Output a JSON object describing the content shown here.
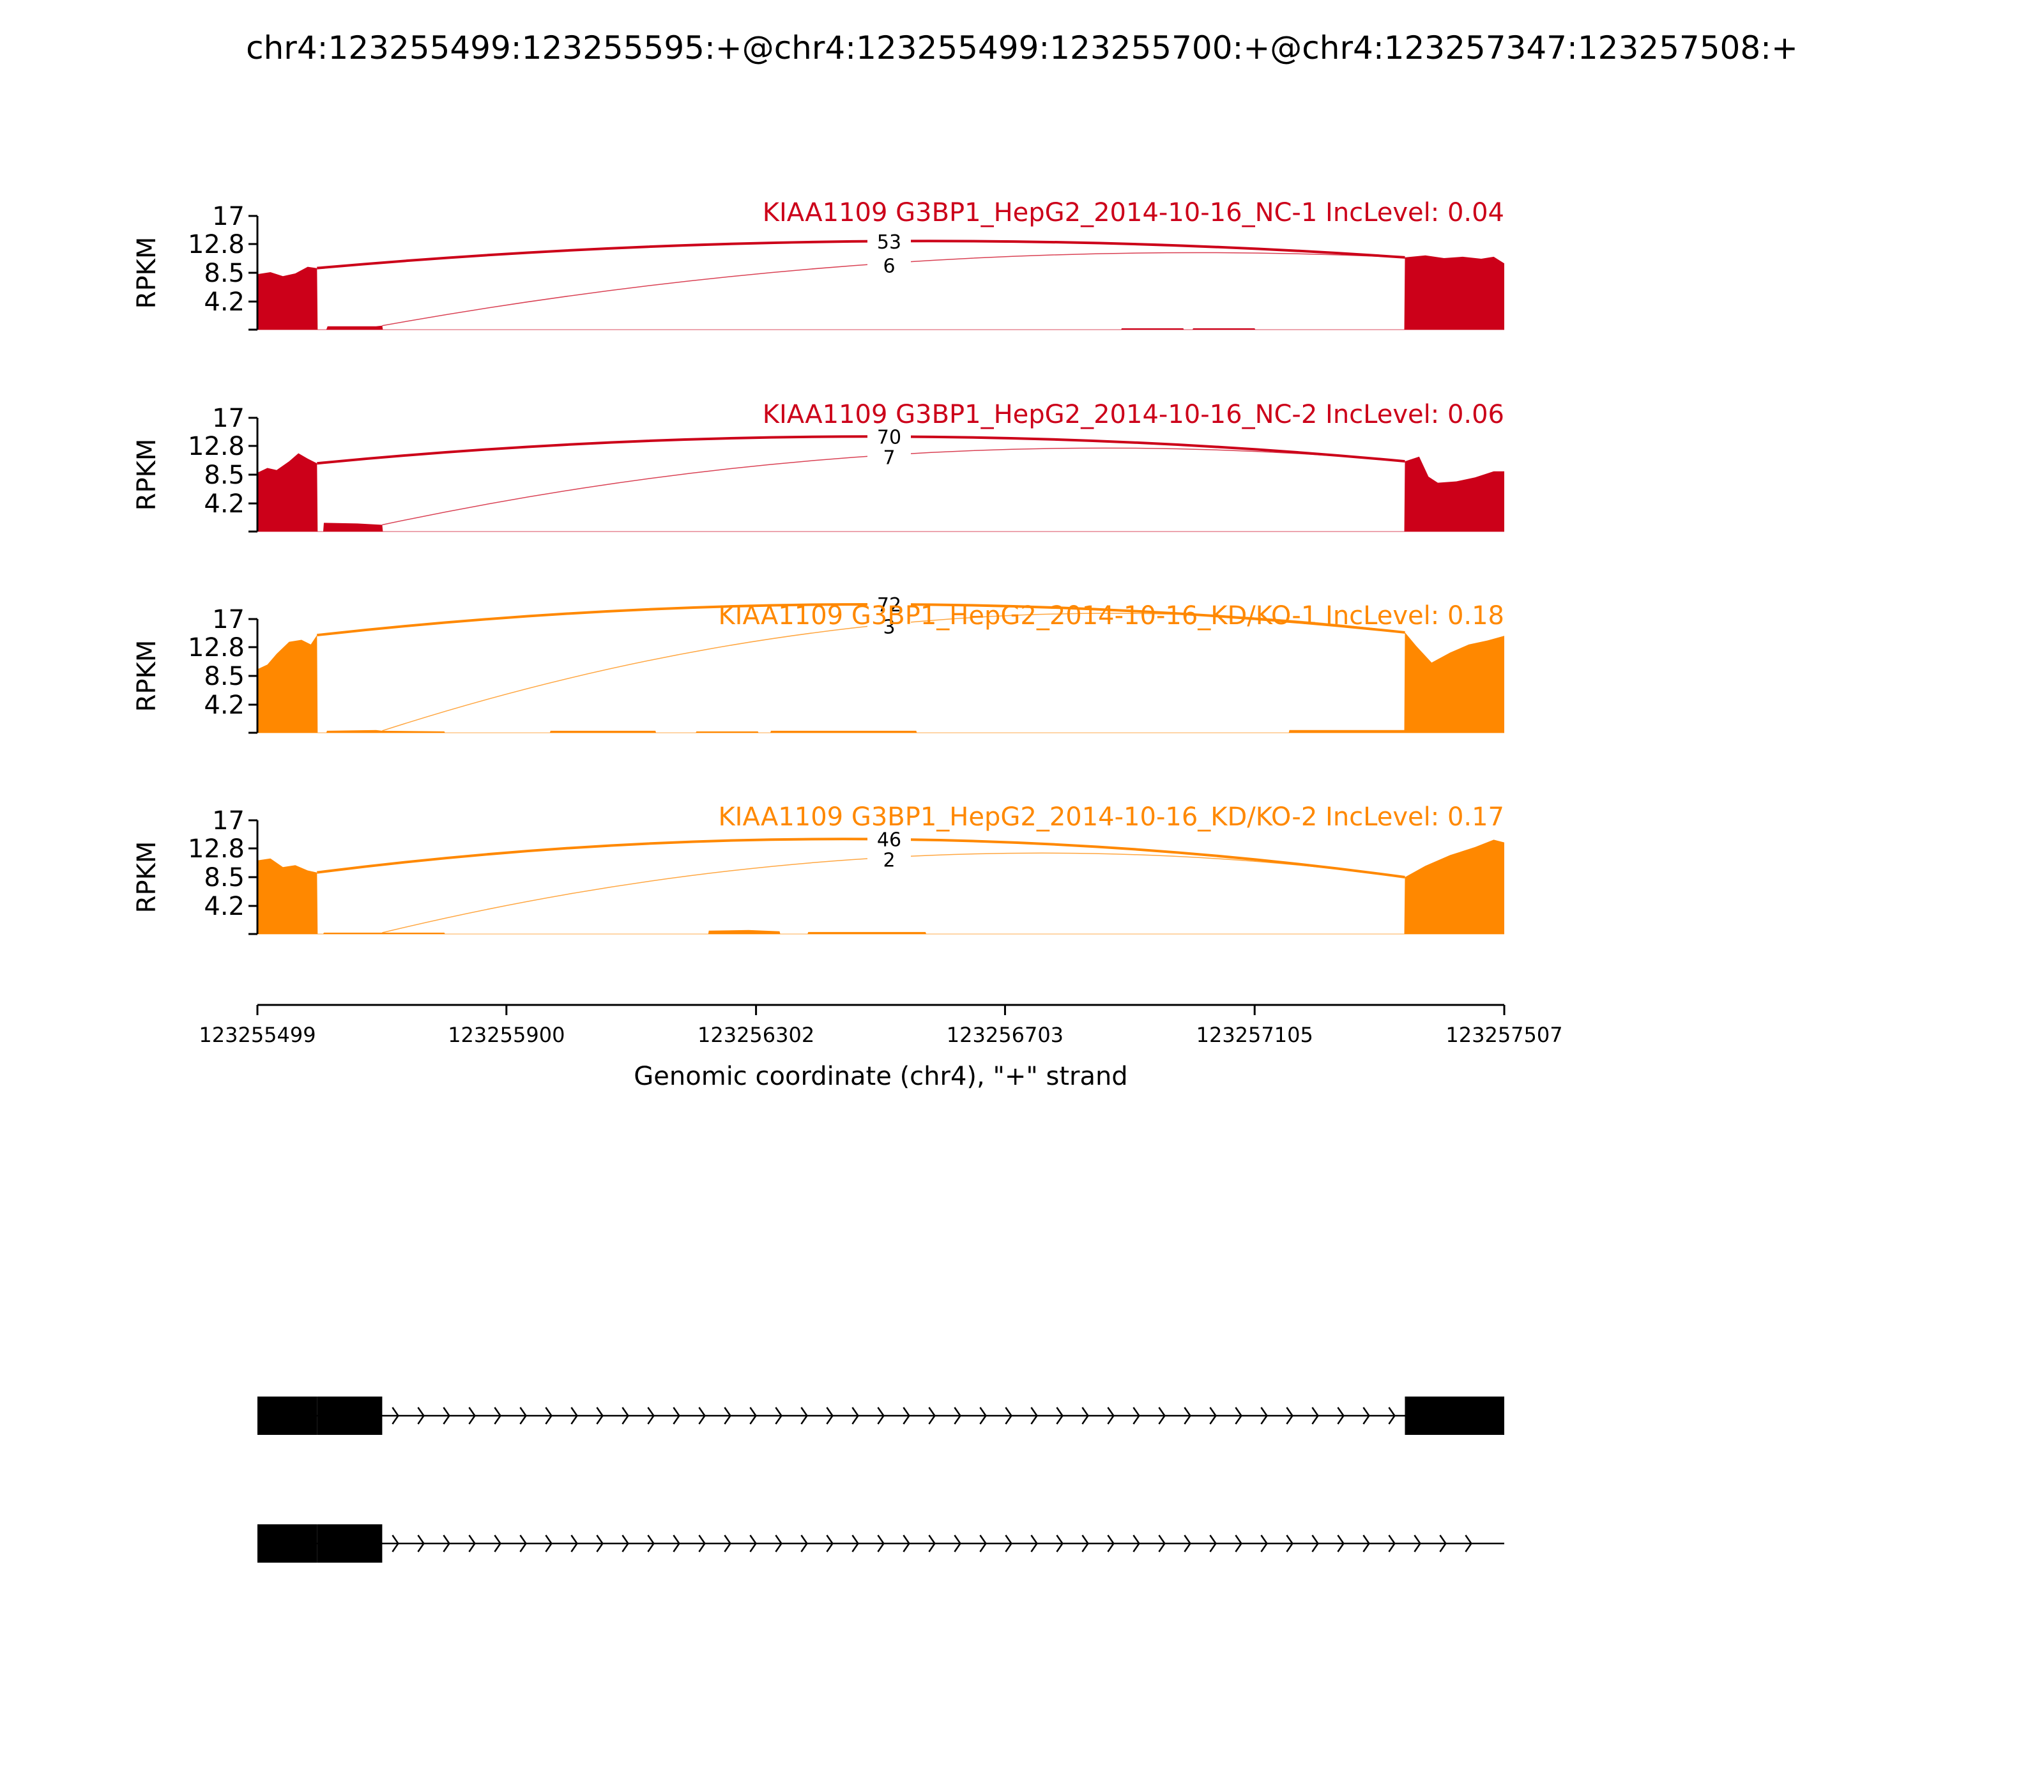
{
  "title": "chr4:123255499:123255595:+@chr4:123255499:123255700:+@chr4:123257347:123257508:+",
  "chart_data": {
    "type": "area",
    "ylabel": "RPKM",
    "yticks": [
      "17",
      "12.8",
      "8.5",
      "4.2"
    ],
    "ylim": [
      0,
      17
    ],
    "xlabel": "Genomic coordinate (chr4), \"+\" strand",
    "xticks": [
      "123255499",
      "123255900",
      "123256302",
      "123256703",
      "123257105",
      "123257507"
    ],
    "xlim": [
      123255499,
      123257507
    ],
    "colors": {
      "NC": "#cc0019",
      "KD": "#ff8800"
    },
    "tracks": [
      {
        "label": "KIAA1109 G3BP1_HepG2_2014-10-16_NC-1 IncLevel: 0.04",
        "color": "#cc0019",
        "junctions": [
          {
            "from": 123255595,
            "to": 123257347,
            "reads": "53",
            "peak": 13.2
          },
          {
            "from": 123255700,
            "to": 123257347,
            "reads": "6",
            "peak": 10.0
          }
        ],
        "coverage": [
          {
            "x": 123255499,
            "y": 8.3
          },
          {
            "x": 123255520,
            "y": 8.6
          },
          {
            "x": 123255540,
            "y": 8.0
          },
          {
            "x": 123255560,
            "y": 8.4
          },
          {
            "x": 123255580,
            "y": 9.4
          },
          {
            "x": 123255595,
            "y": 9.2
          },
          {
            "x": 123255596,
            "y": 0
          },
          {
            "x": 123255610,
            "y": 0
          },
          {
            "x": 123255612,
            "y": 0.5
          },
          {
            "x": 123255690,
            "y": 0.5
          },
          {
            "x": 123255700,
            "y": 0.6
          },
          {
            "x": 123255701,
            "y": 0
          },
          {
            "x": 123256890,
            "y": 0
          },
          {
            "x": 123256891,
            "y": 0.2
          },
          {
            "x": 123256990,
            "y": 0.2
          },
          {
            "x": 123256991,
            "y": 0
          },
          {
            "x": 123257005,
            "y": 0
          },
          {
            "x": 123257006,
            "y": 0.2
          },
          {
            "x": 123257105,
            "y": 0.2
          },
          {
            "x": 123257106,
            "y": 0
          },
          {
            "x": 123257346,
            "y": 0
          },
          {
            "x": 123257347,
            "y": 10.8
          },
          {
            "x": 123257380,
            "y": 11.1
          },
          {
            "x": 123257410,
            "y": 10.7
          },
          {
            "x": 123257440,
            "y": 10.9
          },
          {
            "x": 123257470,
            "y": 10.6
          },
          {
            "x": 123257490,
            "y": 10.9
          },
          {
            "x": 123257507,
            "y": 9.9
          }
        ]
      },
      {
        "label": "KIAA1109 G3BP1_HepG2_2014-10-16_NC-2 IncLevel: 0.06",
        "color": "#cc0019",
        "junctions": [
          {
            "from": 123255595,
            "to": 123257347,
            "reads": "70",
            "peak": 14.2
          },
          {
            "from": 123255700,
            "to": 123257347,
            "reads": "7",
            "peak": 11.5
          }
        ],
        "coverage": [
          {
            "x": 123255499,
            "y": 8.8
          },
          {
            "x": 123255515,
            "y": 9.5
          },
          {
            "x": 123255530,
            "y": 9.2
          },
          {
            "x": 123255550,
            "y": 10.5
          },
          {
            "x": 123255565,
            "y": 11.7
          },
          {
            "x": 123255580,
            "y": 10.9
          },
          {
            "x": 123255595,
            "y": 10.2
          },
          {
            "x": 123255596,
            "y": 0
          },
          {
            "x": 123255605,
            "y": 0
          },
          {
            "x": 123255606,
            "y": 1.3
          },
          {
            "x": 123255660,
            "y": 1.2
          },
          {
            "x": 123255700,
            "y": 1.0
          },
          {
            "x": 123255701,
            "y": 0
          },
          {
            "x": 123257346,
            "y": 0
          },
          {
            "x": 123257347,
            "y": 10.5
          },
          {
            "x": 123257370,
            "y": 11.2
          },
          {
            "x": 123257385,
            "y": 8.2
          },
          {
            "x": 123257400,
            "y": 7.3
          },
          {
            "x": 123257430,
            "y": 7.5
          },
          {
            "x": 123257460,
            "y": 8.1
          },
          {
            "x": 123257490,
            "y": 9.0
          },
          {
            "x": 123257507,
            "y": 9.0
          }
        ]
      },
      {
        "label": "KIAA1109 G3BP1_HepG2_2014-10-16_KD/KO-1 IncLevel: 0.18",
        "color": "#ff8800",
        "junctions": [
          {
            "from": 123255595,
            "to": 123257347,
            "reads": "72",
            "peak": 19.2
          },
          {
            "from": 123255700,
            "to": 123257347,
            "reads": "3",
            "peak": 16.3
          }
        ],
        "coverage": [
          {
            "x": 123255499,
            "y": 9.5
          },
          {
            "x": 123255515,
            "y": 10.2
          },
          {
            "x": 123255530,
            "y": 11.8
          },
          {
            "x": 123255550,
            "y": 13.6
          },
          {
            "x": 123255570,
            "y": 13.9
          },
          {
            "x": 123255585,
            "y": 13.2
          },
          {
            "x": 123255595,
            "y": 14.6
          },
          {
            "x": 123255596,
            "y": 0
          },
          {
            "x": 123255610,
            "y": 0
          },
          {
            "x": 123255611,
            "y": 0.3
          },
          {
            "x": 123255690,
            "y": 0.4
          },
          {
            "x": 123255700,
            "y": 0.3
          },
          {
            "x": 123255800,
            "y": 0.2
          },
          {
            "x": 123255801,
            "y": 0
          },
          {
            "x": 123255970,
            "y": 0
          },
          {
            "x": 123255971,
            "y": 0.3
          },
          {
            "x": 123256140,
            "y": 0.3
          },
          {
            "x": 123256141,
            "y": 0
          },
          {
            "x": 123256205,
            "y": 0
          },
          {
            "x": 123256206,
            "y": 0.2
          },
          {
            "x": 123256305,
            "y": 0.2
          },
          {
            "x": 123256306,
            "y": 0
          },
          {
            "x": 123256325,
            "y": 0
          },
          {
            "x": 123256326,
            "y": 0.3
          },
          {
            "x": 123256560,
            "y": 0.3
          },
          {
            "x": 123256561,
            "y": 0
          },
          {
            "x": 123257160,
            "y": 0
          },
          {
            "x": 123257161,
            "y": 0.4
          },
          {
            "x": 123257346,
            "y": 0.4
          },
          {
            "x": 123257347,
            "y": 15.0
          },
          {
            "x": 123257365,
            "y": 13.0
          },
          {
            "x": 123257390,
            "y": 10.5
          },
          {
            "x": 123257420,
            "y": 12.0
          },
          {
            "x": 123257450,
            "y": 13.2
          },
          {
            "x": 123257480,
            "y": 13.8
          },
          {
            "x": 123257507,
            "y": 14.5
          }
        ]
      },
      {
        "label": "KIAA1109 G3BP1_HepG2_2014-10-16_KD/KO-2 IncLevel: 0.17",
        "color": "#ff8800",
        "junctions": [
          {
            "from": 123255595,
            "to": 123257347,
            "reads": "46",
            "peak": 14.2
          },
          {
            "from": 123255700,
            "to": 123257347,
            "reads": "2",
            "peak": 11.5
          }
        ],
        "coverage": [
          {
            "x": 123255499,
            "y": 11.0
          },
          {
            "x": 123255520,
            "y": 11.3
          },
          {
            "x": 123255540,
            "y": 10.0
          },
          {
            "x": 123255560,
            "y": 10.3
          },
          {
            "x": 123255580,
            "y": 9.5
          },
          {
            "x": 123255595,
            "y": 9.2
          },
          {
            "x": 123255596,
            "y": 0
          },
          {
            "x": 123255605,
            "y": 0
          },
          {
            "x": 123255606,
            "y": 0.2
          },
          {
            "x": 123255800,
            "y": 0.2
          },
          {
            "x": 123255801,
            "y": 0
          },
          {
            "x": 123256225,
            "y": 0
          },
          {
            "x": 123256226,
            "y": 0.5
          },
          {
            "x": 123256290,
            "y": 0.6
          },
          {
            "x": 123256340,
            "y": 0.4
          },
          {
            "x": 123256341,
            "y": 0
          },
          {
            "x": 123256385,
            "y": 0
          },
          {
            "x": 123256386,
            "y": 0.3
          },
          {
            "x": 123256575,
            "y": 0.3
          },
          {
            "x": 123256576,
            "y": 0
          },
          {
            "x": 123257346,
            "y": 0
          },
          {
            "x": 123257347,
            "y": 8.5
          },
          {
            "x": 123257380,
            "y": 10.2
          },
          {
            "x": 123257420,
            "y": 11.8
          },
          {
            "x": 123257460,
            "y": 13.0
          },
          {
            "x": 123257490,
            "y": 14.1
          },
          {
            "x": 123257507,
            "y": 13.7
          }
        ]
      }
    ],
    "isoforms": [
      {
        "exons": [
          [
            123255499,
            123255595
          ],
          [
            123255595,
            123255700
          ],
          [
            123257347,
            123257507
          ]
        ]
      },
      {
        "exons": [
          [
            123255499,
            123255595
          ],
          [
            123255595,
            123255700
          ]
        ]
      }
    ]
  }
}
